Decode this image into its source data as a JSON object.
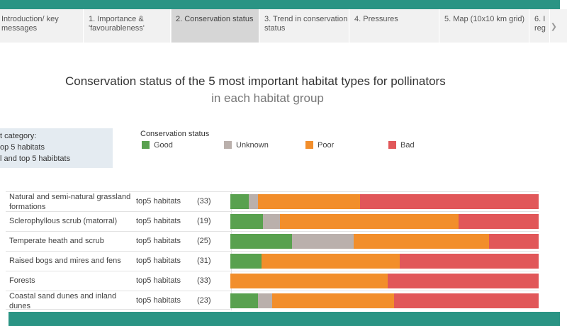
{
  "tabs": [
    {
      "label": "Introduction/ key messages",
      "active": false
    },
    {
      "label": "1. Importance & 'favourableness'",
      "active": false
    },
    {
      "label": "2. Conservation status",
      "active": true
    },
    {
      "label": "3. Trend in conservation status",
      "active": false
    },
    {
      "label": "4. Pressures",
      "active": false
    },
    {
      "label": "5. Map (10x10 km grid)",
      "active": false
    },
    {
      "label": "6. I reg",
      "active": false
    }
  ],
  "category_box": {
    "title": "t category:",
    "option1": "op 5 habitats",
    "option2": "l and top 5 habibtats"
  },
  "chart_data": {
    "type": "bar",
    "stacked": true,
    "orientation": "horizontal",
    "normalized": true,
    "title": "Conservation status of the 5 most important habitat types for pollinators",
    "subtitle": "in each habitat group",
    "legend_title": "Conservation status",
    "legend_placement": "top",
    "categories": [
      "Natural and semi-natural grassland formations",
      "Sclerophyllous scrub (matorral)",
      "Temperate heath and scrub",
      "Raised bogs and mires and fens",
      "Forests",
      "Coastal sand dunes and inland dunes"
    ],
    "row_type": [
      "top5 habitats",
      "top5 habitats",
      "top5 habitats",
      "top5 habitats",
      "top5 habitats",
      "top5 habitats"
    ],
    "counts": [
      "(33)",
      "(19)",
      "(25)",
      "(31)",
      "(33)",
      "(23)"
    ],
    "series": [
      {
        "name": "Good",
        "color": "#59a14f",
        "values": [
          6,
          10.5,
          20,
          10,
          0,
          9
        ]
      },
      {
        "name": "Unknown",
        "color": "#bab0ac",
        "values": [
          3,
          5.5,
          20,
          0,
          0,
          4.5
        ]
      },
      {
        "name": "Poor",
        "color": "#f28e2b",
        "values": [
          33,
          58,
          44,
          45,
          51,
          39.5
        ]
      },
      {
        "name": "Bad",
        "color": "#e15759",
        "values": [
          58,
          26,
          16,
          45,
          49,
          47
        ]
      }
    ]
  }
}
